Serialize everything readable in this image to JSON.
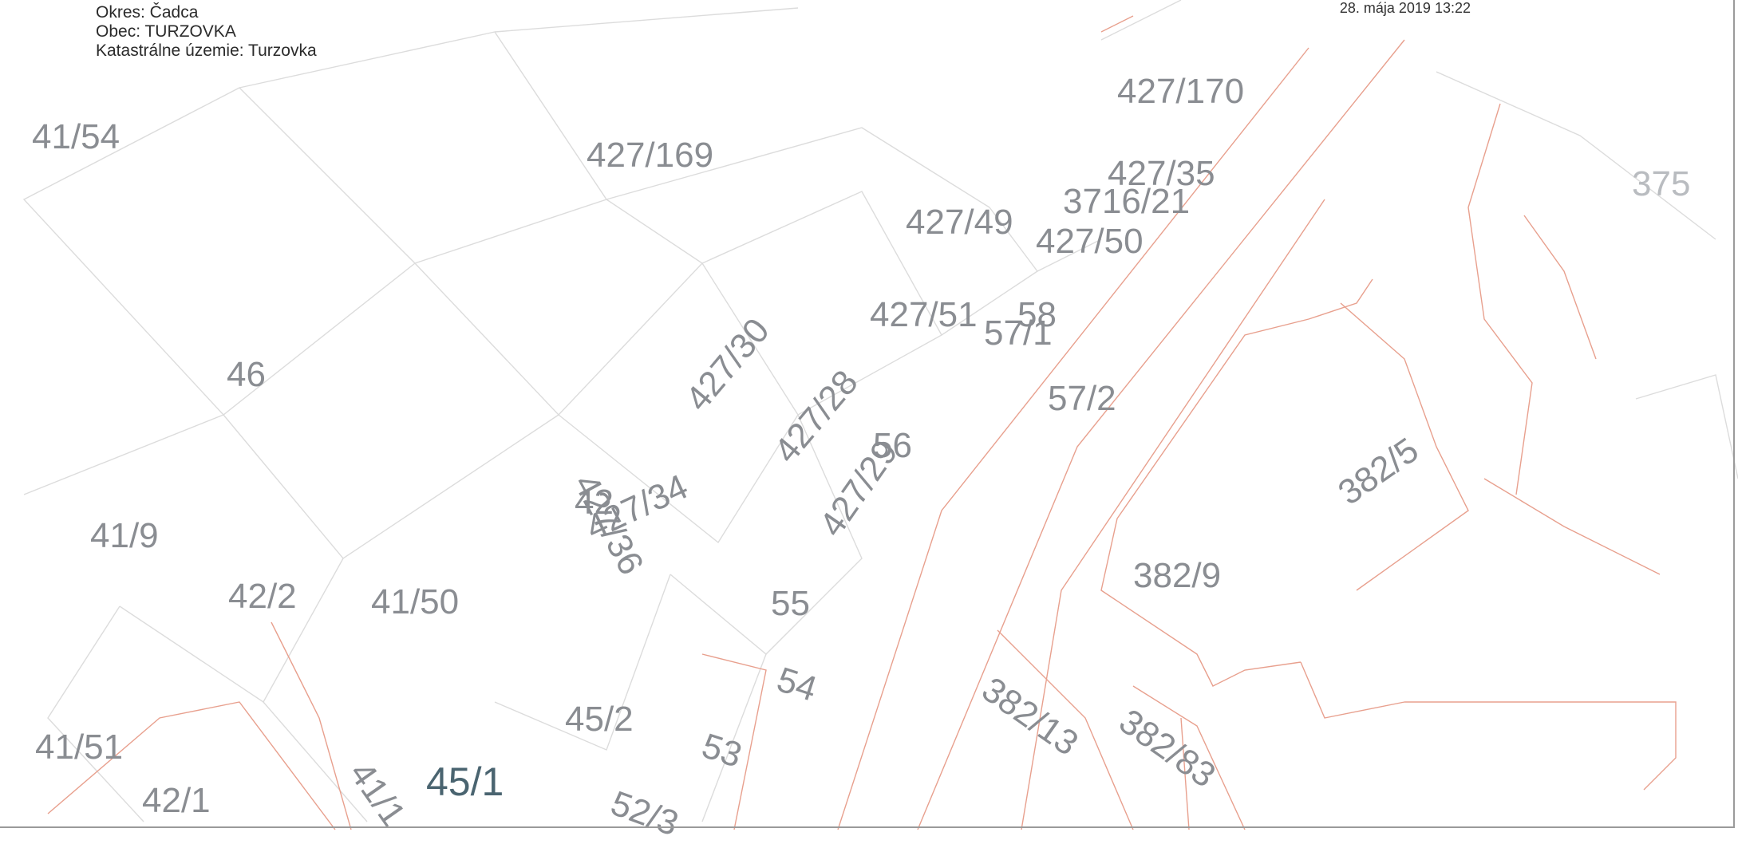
{
  "header": {
    "okres": "Okres: Čadca",
    "obec": "Obec: TURZOVKA",
    "katastralne_uzemie": "Katastrálne územie: Turzovka",
    "timestamp": "28. mája 2019 13:22"
  },
  "parcels": {
    "p_41_54": "41/54",
    "p_427_169": "427/169",
    "p_427_170": "427/170",
    "p_427_35": "427/35",
    "p_3716_21": "3716/21",
    "p_375": "375",
    "p_427_49": "427/49",
    "p_427_50": "427/50",
    "p_427_51": "427/51",
    "p_58": "58",
    "p_57_1": "57/1",
    "p_427_30": "427/30",
    "p_46": "46",
    "p_427_28": "427/28",
    "p_57_2": "57/2",
    "p_382_5": "382/5",
    "p_427_29": "427/29",
    "p_56": "56",
    "p_427_34": "427/34",
    "p_42": "42",
    "p_427_36": "427/36",
    "p_41_9": "41/9",
    "p_382_9": "382/9",
    "p_42_2": "42/2",
    "p_41_50": "41/50",
    "p_55": "55",
    "p_54": "54",
    "p_382_13": "382/13",
    "p_382_83": "382/83",
    "p_45_2": "45/2",
    "p_41_51": "41/51",
    "p_53": "53",
    "p_45_1": "45/1",
    "p_41_1x": "41/1",
    "p_42_1": "42/1",
    "p_52_3": "52/3"
  },
  "colors": {
    "parcel_label": "#8a8d92",
    "boundary_red": "#e8a08e",
    "boundary_gray": "#d9d9d9",
    "highlight_label": "#4a6470"
  }
}
